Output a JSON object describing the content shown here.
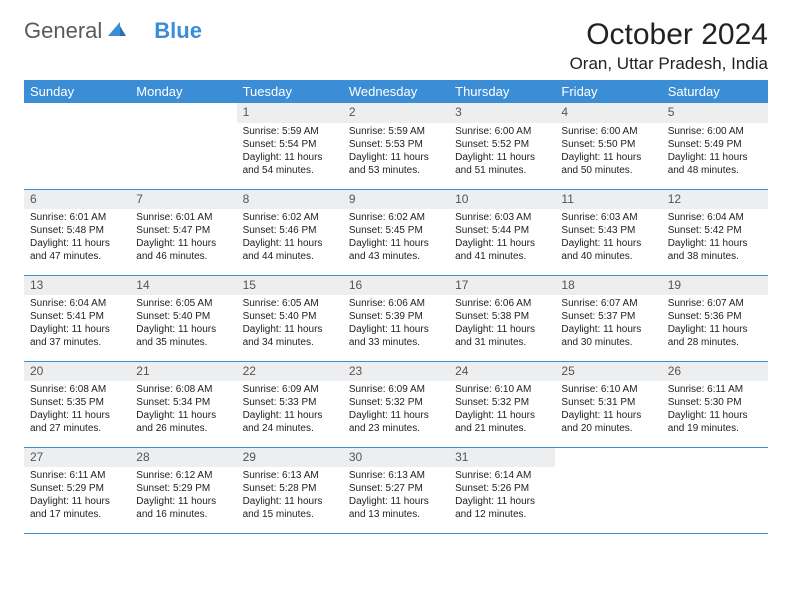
{
  "logo": {
    "part1": "General",
    "part2": "Blue"
  },
  "title": "October 2024",
  "location": "Oran, Uttar Pradesh, India",
  "colors": {
    "header_bg": "#3b8ed6",
    "header_text": "#ffffff",
    "daynum_bg": "#eceeef",
    "border": "#3b8ed6",
    "logo_gray": "#5a5a5a",
    "logo_blue": "#3b8ed6"
  },
  "fonts": {
    "title_pt": 30,
    "location_pt": 17,
    "header_pt": 13,
    "body_pt": 10
  },
  "weekdays": [
    "Sunday",
    "Monday",
    "Tuesday",
    "Wednesday",
    "Thursday",
    "Friday",
    "Saturday"
  ],
  "weeks": [
    [
      {
        "n": "",
        "sr": "",
        "ss": "",
        "dl": ""
      },
      {
        "n": "",
        "sr": "",
        "ss": "",
        "dl": ""
      },
      {
        "n": "1",
        "sr": "Sunrise: 5:59 AM",
        "ss": "Sunset: 5:54 PM",
        "dl": "Daylight: 11 hours and 54 minutes."
      },
      {
        "n": "2",
        "sr": "Sunrise: 5:59 AM",
        "ss": "Sunset: 5:53 PM",
        "dl": "Daylight: 11 hours and 53 minutes."
      },
      {
        "n": "3",
        "sr": "Sunrise: 6:00 AM",
        "ss": "Sunset: 5:52 PM",
        "dl": "Daylight: 11 hours and 51 minutes."
      },
      {
        "n": "4",
        "sr": "Sunrise: 6:00 AM",
        "ss": "Sunset: 5:50 PM",
        "dl": "Daylight: 11 hours and 50 minutes."
      },
      {
        "n": "5",
        "sr": "Sunrise: 6:00 AM",
        "ss": "Sunset: 5:49 PM",
        "dl": "Daylight: 11 hours and 48 minutes."
      }
    ],
    [
      {
        "n": "6",
        "sr": "Sunrise: 6:01 AM",
        "ss": "Sunset: 5:48 PM",
        "dl": "Daylight: 11 hours and 47 minutes."
      },
      {
        "n": "7",
        "sr": "Sunrise: 6:01 AM",
        "ss": "Sunset: 5:47 PM",
        "dl": "Daylight: 11 hours and 46 minutes."
      },
      {
        "n": "8",
        "sr": "Sunrise: 6:02 AM",
        "ss": "Sunset: 5:46 PM",
        "dl": "Daylight: 11 hours and 44 minutes."
      },
      {
        "n": "9",
        "sr": "Sunrise: 6:02 AM",
        "ss": "Sunset: 5:45 PM",
        "dl": "Daylight: 11 hours and 43 minutes."
      },
      {
        "n": "10",
        "sr": "Sunrise: 6:03 AM",
        "ss": "Sunset: 5:44 PM",
        "dl": "Daylight: 11 hours and 41 minutes."
      },
      {
        "n": "11",
        "sr": "Sunrise: 6:03 AM",
        "ss": "Sunset: 5:43 PM",
        "dl": "Daylight: 11 hours and 40 minutes."
      },
      {
        "n": "12",
        "sr": "Sunrise: 6:04 AM",
        "ss": "Sunset: 5:42 PM",
        "dl": "Daylight: 11 hours and 38 minutes."
      }
    ],
    [
      {
        "n": "13",
        "sr": "Sunrise: 6:04 AM",
        "ss": "Sunset: 5:41 PM",
        "dl": "Daylight: 11 hours and 37 minutes."
      },
      {
        "n": "14",
        "sr": "Sunrise: 6:05 AM",
        "ss": "Sunset: 5:40 PM",
        "dl": "Daylight: 11 hours and 35 minutes."
      },
      {
        "n": "15",
        "sr": "Sunrise: 6:05 AM",
        "ss": "Sunset: 5:40 PM",
        "dl": "Daylight: 11 hours and 34 minutes."
      },
      {
        "n": "16",
        "sr": "Sunrise: 6:06 AM",
        "ss": "Sunset: 5:39 PM",
        "dl": "Daylight: 11 hours and 33 minutes."
      },
      {
        "n": "17",
        "sr": "Sunrise: 6:06 AM",
        "ss": "Sunset: 5:38 PM",
        "dl": "Daylight: 11 hours and 31 minutes."
      },
      {
        "n": "18",
        "sr": "Sunrise: 6:07 AM",
        "ss": "Sunset: 5:37 PM",
        "dl": "Daylight: 11 hours and 30 minutes."
      },
      {
        "n": "19",
        "sr": "Sunrise: 6:07 AM",
        "ss": "Sunset: 5:36 PM",
        "dl": "Daylight: 11 hours and 28 minutes."
      }
    ],
    [
      {
        "n": "20",
        "sr": "Sunrise: 6:08 AM",
        "ss": "Sunset: 5:35 PM",
        "dl": "Daylight: 11 hours and 27 minutes."
      },
      {
        "n": "21",
        "sr": "Sunrise: 6:08 AM",
        "ss": "Sunset: 5:34 PM",
        "dl": "Daylight: 11 hours and 26 minutes."
      },
      {
        "n": "22",
        "sr": "Sunrise: 6:09 AM",
        "ss": "Sunset: 5:33 PM",
        "dl": "Daylight: 11 hours and 24 minutes."
      },
      {
        "n": "23",
        "sr": "Sunrise: 6:09 AM",
        "ss": "Sunset: 5:32 PM",
        "dl": "Daylight: 11 hours and 23 minutes."
      },
      {
        "n": "24",
        "sr": "Sunrise: 6:10 AM",
        "ss": "Sunset: 5:32 PM",
        "dl": "Daylight: 11 hours and 21 minutes."
      },
      {
        "n": "25",
        "sr": "Sunrise: 6:10 AM",
        "ss": "Sunset: 5:31 PM",
        "dl": "Daylight: 11 hours and 20 minutes."
      },
      {
        "n": "26",
        "sr": "Sunrise: 6:11 AM",
        "ss": "Sunset: 5:30 PM",
        "dl": "Daylight: 11 hours and 19 minutes."
      }
    ],
    [
      {
        "n": "27",
        "sr": "Sunrise: 6:11 AM",
        "ss": "Sunset: 5:29 PM",
        "dl": "Daylight: 11 hours and 17 minutes."
      },
      {
        "n": "28",
        "sr": "Sunrise: 6:12 AM",
        "ss": "Sunset: 5:29 PM",
        "dl": "Daylight: 11 hours and 16 minutes."
      },
      {
        "n": "29",
        "sr": "Sunrise: 6:13 AM",
        "ss": "Sunset: 5:28 PM",
        "dl": "Daylight: 11 hours and 15 minutes."
      },
      {
        "n": "30",
        "sr": "Sunrise: 6:13 AM",
        "ss": "Sunset: 5:27 PM",
        "dl": "Daylight: 11 hours and 13 minutes."
      },
      {
        "n": "31",
        "sr": "Sunrise: 6:14 AM",
        "ss": "Sunset: 5:26 PM",
        "dl": "Daylight: 11 hours and 12 minutes."
      },
      {
        "n": "",
        "sr": "",
        "ss": "",
        "dl": ""
      },
      {
        "n": "",
        "sr": "",
        "ss": "",
        "dl": ""
      }
    ]
  ]
}
